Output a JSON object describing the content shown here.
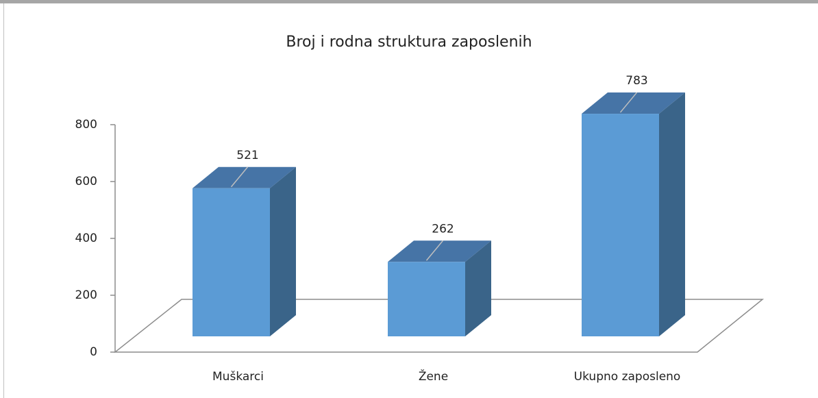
{
  "chart_data": {
    "type": "bar3d",
    "title": "Broj i rodna struktura zaposlenih",
    "categories": [
      "Muškarci",
      "Žene",
      "Ukupno zaposleno"
    ],
    "values": [
      521,
      262,
      783
    ],
    "color": "#5b9bd5",
    "ylim": [
      0,
      800
    ],
    "yticks": [
      0,
      200,
      400,
      600,
      800
    ]
  }
}
